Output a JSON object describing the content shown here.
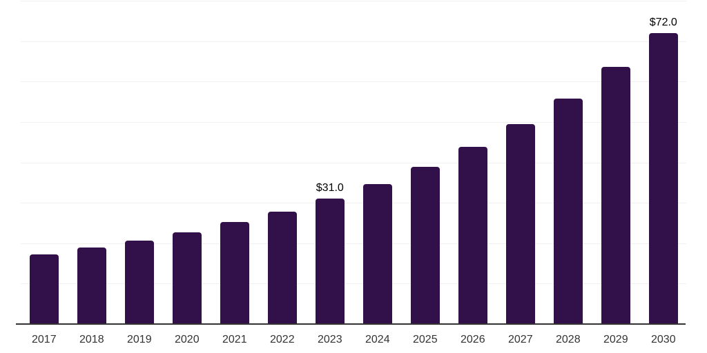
{
  "chart_data": {
    "type": "bar",
    "title": "",
    "xlabel": "",
    "ylabel": "",
    "categories": [
      "2017",
      "2018",
      "2019",
      "2020",
      "2021",
      "2022",
      "2023",
      "2024",
      "2025",
      "2026",
      "2027",
      "2028",
      "2029",
      "2030"
    ],
    "values": [
      17.2,
      19.0,
      20.7,
      22.7,
      25.2,
      27.8,
      31.0,
      34.6,
      38.9,
      43.8,
      49.4,
      55.8,
      63.6,
      72.0
    ],
    "data_labels": [
      {
        "category": "2023",
        "text": "$31.0"
      },
      {
        "category": "2030",
        "text": "$72.0"
      }
    ],
    "ylim": [
      0,
      80
    ],
    "grid_step": 10,
    "grid": true,
    "legend": false,
    "colors": {
      "bar": "#32114a",
      "gridline": "#f0f0f0",
      "axis_line": "#333333",
      "value_label": "#000000",
      "tick_label": "#333333",
      "background": "#ffffff"
    }
  }
}
